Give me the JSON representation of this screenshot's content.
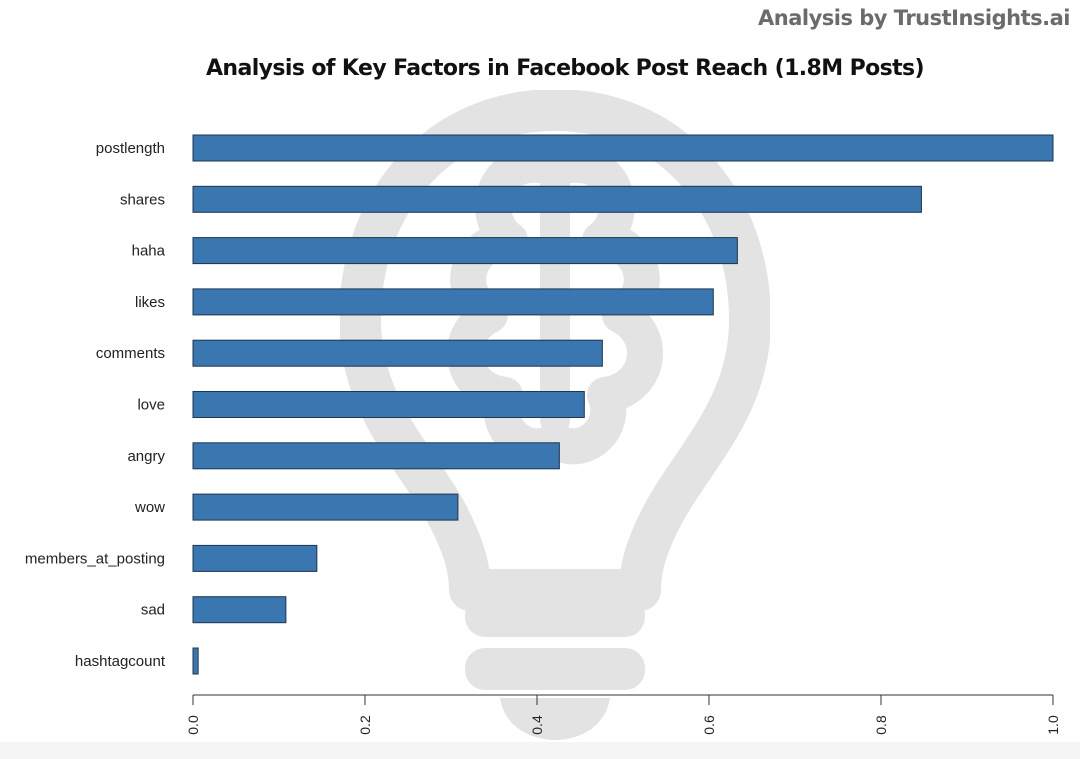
{
  "header": {
    "credit": "Analysis by TrustInsights.ai",
    "title": "Analysis of Key Factors in Facebook Post Reach (1.8M Posts)"
  },
  "colors": {
    "bar_fill": "#3a76af",
    "bar_stroke": "#1f3550",
    "credit_text": "#6b6b6b",
    "watermark": "#e4e4e4"
  },
  "watermark": {
    "icon": "lightbulb-brain-icon"
  },
  "chart_data": {
    "type": "bar",
    "orientation": "horizontal",
    "title": "Analysis of Key Factors in Facebook Post Reach (1.8M Posts)",
    "xlabel": "",
    "ylabel": "",
    "xlim": [
      0,
      1.0
    ],
    "x_ticks": [
      "0.0",
      "0.2",
      "0.4",
      "0.6",
      "0.8",
      "1.0"
    ],
    "grid": false,
    "legend": null,
    "categories": [
      "postlength",
      "shares",
      "haha",
      "likes",
      "comments",
      "love",
      "angry",
      "wow",
      "members_at_posting",
      "sad",
      "hashtagcount"
    ],
    "values": [
      1.0,
      0.847,
      0.633,
      0.605,
      0.476,
      0.455,
      0.426,
      0.308,
      0.144,
      0.108,
      0.006
    ]
  }
}
